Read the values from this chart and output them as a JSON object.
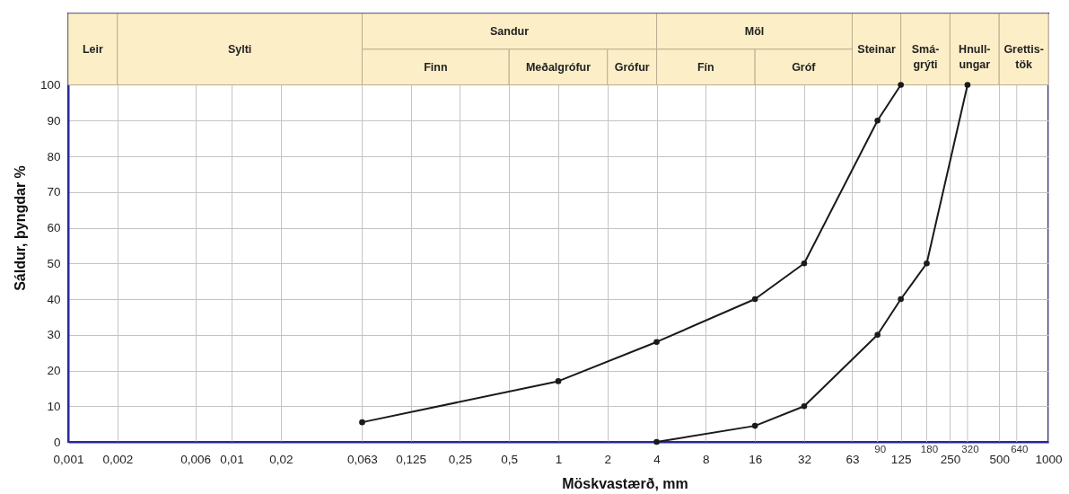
{
  "chart_data": {
    "type": "line",
    "xlabel": "Möskvastærð, mm",
    "ylabel": "Sáldur, þyngdar %",
    "series": [
      {
        "color": "#1a1a1a",
        "x": [
          0.063,
          1,
          4,
          16,
          32,
          90,
          125
        ],
        "values": [
          5.5,
          17,
          28,
          40,
          50,
          90,
          100
        ]
      },
      {
        "color": "#1a1a1a",
        "x": [
          4,
          16,
          32,
          90,
          125,
          180,
          320
        ],
        "values": [
          0,
          4.5,
          10,
          30,
          40,
          50,
          100
        ]
      }
    ],
    "log": "x",
    "xlim": [
      0.001,
      1000
    ],
    "xticks": [
      {
        "value": 0.001,
        "label": "0,001"
      },
      {
        "value": 0.002,
        "label": "0,002"
      },
      {
        "value": 0.006,
        "label": "0,006"
      },
      {
        "value": 0.01,
        "label": "0,01"
      },
      {
        "value": 0.02,
        "label": "0,02"
      },
      {
        "value": 0.063,
        "label": "0,063"
      },
      {
        "value": 0.125,
        "label": "0,125"
      },
      {
        "value": 0.25,
        "label": "0,25"
      },
      {
        "value": 0.5,
        "label": "0,5"
      },
      1,
      2,
      4,
      8,
      16,
      32,
      63,
      125,
      250,
      500,
      1000
    ],
    "ylim": [
      0,
      120
    ],
    "yticks": [
      0,
      10,
      20,
      30,
      40,
      50,
      60,
      70,
      80,
      90,
      100
    ],
    "grid": true,
    "marker": "circle",
    "line_style": "solid",
    "ref_lines": [
      {
        "axis": "x",
        "value": 90,
        "label": "90",
        "color": "#c4c4c4"
      },
      {
        "axis": "x",
        "value": 180,
        "label": "180",
        "color": "#c4c4c4"
      },
      {
        "axis": "x",
        "value": 320,
        "label": "320",
        "color": "#c4c4c4"
      },
      {
        "axis": "x",
        "value": 640,
        "label": "640",
        "color": "#c4c4c4"
      }
    ],
    "bands": [
      {
        "axis": "x",
        "from": 0.001,
        "to": 0.002,
        "label": "Leir",
        "color": "#fcefc7"
      },
      {
        "axis": "x",
        "from": 0.002,
        "to": 0.063,
        "label": "Sylti",
        "color": "#fcefc7"
      },
      {
        "axis": "x",
        "from": 0.063,
        "to": 4,
        "label": "Sandur",
        "color": "#fcefc7"
      },
      {
        "axis": "x",
        "from": 0.063,
        "to": 0.5,
        "label": "Finn",
        "color": "#fcefc7"
      },
      {
        "axis": "x",
        "from": 0.5,
        "to": 2,
        "label": "Meðalgrófur",
        "color": "#fcefc7"
      },
      {
        "axis": "x",
        "from": 2,
        "to": 4,
        "label": "Grófur",
        "color": "#fcefc7"
      },
      {
        "axis": "x",
        "from": 4,
        "to": 63,
        "label": "Möl",
        "color": "#fcefc7"
      },
      {
        "axis": "x",
        "from": 4,
        "to": 16,
        "label": "Fín",
        "color": "#fcefc7"
      },
      {
        "axis": "x",
        "from": 16,
        "to": 63,
        "label": "Gróf",
        "color": "#fcefc7"
      },
      {
        "axis": "x",
        "from": 63,
        "to": 125,
        "label": "Steinar",
        "color": "#fcefc7"
      },
      {
        "axis": "x",
        "from": 125,
        "to": 250,
        "label": "Smá-grýti",
        "color": "#fcefc7"
      },
      {
        "axis": "x",
        "from": 250,
        "to": 500,
        "label": "Hnull-ungar",
        "color": "#fcefc7"
      },
      {
        "axis": "x",
        "from": 500,
        "to": 1000,
        "label": "Grettis-tök",
        "color": "#fcefc7"
      }
    ]
  }
}
